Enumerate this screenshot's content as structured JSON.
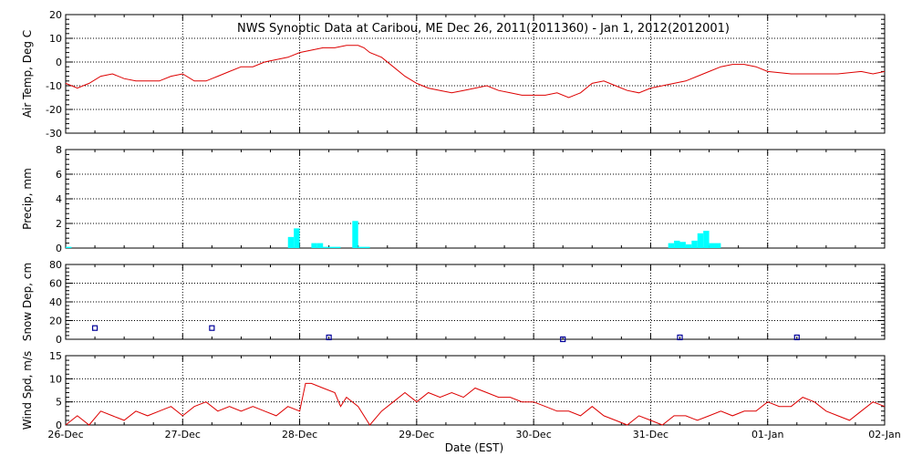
{
  "title": "NWS Synoptic Data at Caribou, ME   Dec 26, 2011(2011360) - Jan  1, 2012(2012001)",
  "xlabel": "Date (EST)",
  "colors": {
    "temp": "#dd0000",
    "precip": "#00ffff",
    "snow": "#000099",
    "wind": "#dd0000",
    "axis": "#000000",
    "grid": "#000000"
  },
  "chart_data": [
    {
      "type": "line",
      "ylabel": "Air Temp, Deg C",
      "ylim": [
        -30,
        20
      ],
      "yticks": [
        "-30",
        "-20",
        "-10",
        "0",
        "10",
        "20"
      ],
      "grid": true,
      "x_unit": "days since Dec 26 00:00",
      "x": [
        0.0,
        0.1,
        0.2,
        0.3,
        0.4,
        0.5,
        0.6,
        0.7,
        0.8,
        0.9,
        1.0,
        1.1,
        1.2,
        1.25,
        1.3,
        1.4,
        1.5,
        1.6,
        1.7,
        1.8,
        1.9,
        2.0,
        2.1,
        2.2,
        2.3,
        2.4,
        2.5,
        2.55,
        2.6,
        2.7,
        2.8,
        2.9,
        3.0,
        3.1,
        3.2,
        3.3,
        3.4,
        3.5,
        3.6,
        3.7,
        3.8,
        3.9,
        4.0,
        4.1,
        4.2,
        4.3,
        4.4,
        4.5,
        4.6,
        4.7,
        4.8,
        4.9,
        5.0,
        5.1,
        5.2,
        5.3,
        5.4,
        5.5,
        5.6,
        5.7,
        5.8,
        5.9,
        6.0,
        6.2,
        6.4,
        6.6,
        6.8,
        6.9,
        7.0
      ],
      "series": [
        {
          "values": [
            -9,
            -11,
            -9,
            -6,
            -5,
            -7,
            -8,
            -8,
            -8,
            -6,
            -5,
            -8,
            -8,
            -7,
            -6,
            -4,
            -2,
            -2,
            0,
            1,
            2,
            4,
            5,
            6,
            6,
            7,
            7,
            6,
            4,
            2,
            -2,
            -6,
            -9,
            -11,
            -12,
            -13,
            -12,
            -11,
            -10,
            -12,
            -13,
            -14,
            -14,
            -14,
            -13,
            -15,
            -13,
            -9,
            -8,
            -10,
            -12,
            -13,
            -11,
            -10,
            -9,
            -8,
            -6,
            -4,
            -2,
            -1,
            -1,
            -2,
            -4,
            -5,
            -5,
            -5,
            -4,
            -5,
            -4
          ]
        }
      ]
    },
    {
      "type": "bar",
      "ylabel": "Precip, mm",
      "ylim": [
        0,
        8
      ],
      "yticks": [
        "0",
        "2",
        "4",
        "6",
        "8"
      ],
      "grid": true,
      "bar_width_days": 0.05,
      "x": [
        0.0,
        1.9,
        1.95,
        2.1,
        2.15,
        2.2,
        2.25,
        2.3,
        2.45,
        2.5,
        2.55,
        5.15,
        5.2,
        5.25,
        5.3,
        5.35,
        5.4,
        5.45,
        5.5,
        5.55
      ],
      "values": [
        0.1,
        0.9,
        1.6,
        0.4,
        0.4,
        0.1,
        0.1,
        0.1,
        2.2,
        0.1,
        0.1,
        0.4,
        0.6,
        0.5,
        0.3,
        0.6,
        1.2,
        1.4,
        0.4,
        0.4
      ]
    },
    {
      "type": "scatter",
      "ylabel": "Snow Dep, cm",
      "ylim": [
        0,
        80
      ],
      "yticks": [
        "0",
        "20",
        "40",
        "60",
        "80"
      ],
      "grid": true,
      "x": [
        0.25,
        1.25,
        2.25,
        4.25,
        5.25,
        6.25
      ],
      "values": [
        12,
        12,
        2,
        0,
        2,
        2
      ]
    },
    {
      "type": "line",
      "ylabel": "Wind Spd, m/s",
      "ylim": [
        0,
        15
      ],
      "yticks": [
        "0",
        "5",
        "10",
        "15"
      ],
      "grid": true,
      "xticks": [
        "26-Dec",
        "27-Dec",
        "28-Dec",
        "29-Dec",
        "30-Dec",
        "31-Dec",
        "01-Jan",
        "02-Jan"
      ],
      "x": [
        0.0,
        0.1,
        0.2,
        0.3,
        0.4,
        0.5,
        0.6,
        0.7,
        0.8,
        0.9,
        1.0,
        1.1,
        1.2,
        1.3,
        1.4,
        1.5,
        1.6,
        1.7,
        1.8,
        1.9,
        2.0,
        2.05,
        2.1,
        2.2,
        2.3,
        2.35,
        2.4,
        2.5,
        2.6,
        2.7,
        2.8,
        2.9,
        3.0,
        3.1,
        3.2,
        3.3,
        3.4,
        3.5,
        3.6,
        3.7,
        3.8,
        3.9,
        4.0,
        4.1,
        4.2,
        4.3,
        4.4,
        4.5,
        4.6,
        4.7,
        4.8,
        4.9,
        5.0,
        5.1,
        5.2,
        5.3,
        5.4,
        5.5,
        5.6,
        5.7,
        5.8,
        5.9,
        6.0,
        6.1,
        6.2,
        6.3,
        6.4,
        6.5,
        6.6,
        6.7,
        6.8,
        6.9,
        7.0
      ],
      "series": [
        {
          "values": [
            0,
            2,
            0,
            3,
            2,
            1,
            3,
            2,
            3,
            4,
            2,
            4,
            5,
            3,
            4,
            3,
            4,
            3,
            2,
            4,
            3,
            9,
            9,
            8,
            7,
            4,
            6,
            4,
            0,
            3,
            5,
            7,
            5,
            7,
            6,
            7,
            6,
            8,
            7,
            6,
            6,
            5,
            5,
            4,
            3,
            3,
            2,
            4,
            2,
            1,
            0,
            2,
            1,
            0,
            2,
            2,
            1,
            2,
            3,
            2,
            3,
            3,
            5,
            4,
            4,
            6,
            5,
            3,
            2,
            1,
            3,
            5,
            4
          ]
        }
      ]
    }
  ]
}
